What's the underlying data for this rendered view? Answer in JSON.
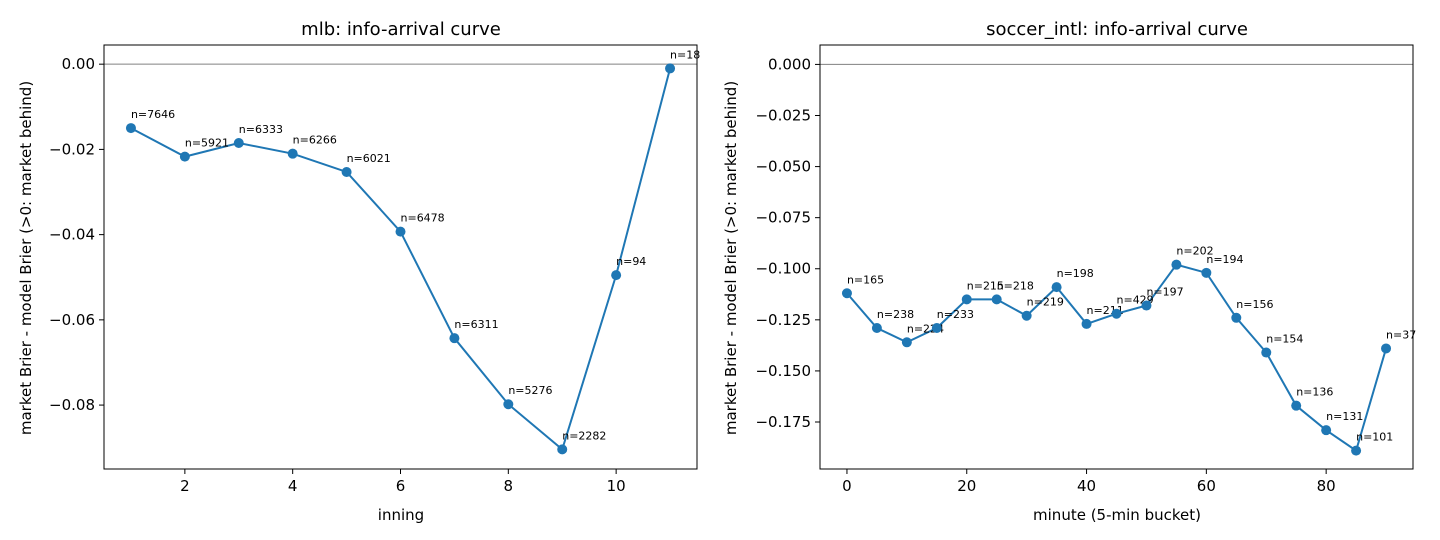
{
  "colors": {
    "series": "#1f77b4",
    "reference_line": "#808080"
  },
  "chart_data": [
    {
      "type": "line",
      "title": "mlb: info-arrival curve",
      "xlabel": "inning",
      "ylabel": "market Brier - model Brier (>0: market behind)",
      "xlim": [
        0.5,
        11.5
      ],
      "ylim": [
        -0.095,
        0.0045
      ],
      "xticks": [
        2,
        4,
        6,
        8,
        10
      ],
      "yticks": [
        0.0,
        -0.02,
        -0.04,
        -0.06,
        -0.08
      ],
      "ytick_labels": [
        "0.00",
        "−0.02",
        "−0.04",
        "−0.06",
        "−0.08"
      ],
      "reference_y": 0,
      "grid": false,
      "markers": true,
      "x": [
        1,
        2,
        3,
        4,
        5,
        6,
        7,
        8,
        9,
        10,
        11
      ],
      "y": [
        -0.015,
        -0.0217,
        -0.0185,
        -0.021,
        -0.0253,
        -0.0393,
        -0.0643,
        -0.0798,
        -0.0904,
        -0.0495,
        -0.001
      ],
      "annotations": [
        "n=7646",
        "n=5921",
        "n=6333",
        "n=6266",
        "n=6021",
        "n=6478",
        "n=6311",
        "n=5276",
        "n=2282",
        "n=94",
        "n=18"
      ]
    },
    {
      "type": "line",
      "title": "soccer_intl: info-arrival curve",
      "xlabel": "minute (5-min bucket)",
      "ylabel": "market Brier - model Brier (>0: market behind)",
      "xlim": [
        -4.5,
        94.5
      ],
      "ylim": [
        -0.198,
        0.0095
      ],
      "xticks": [
        0,
        20,
        40,
        60,
        80
      ],
      "yticks": [
        0.0,
        -0.025,
        -0.05,
        -0.075,
        -0.1,
        -0.125,
        -0.15,
        -0.175
      ],
      "ytick_labels": [
        "0.000",
        "−0.025",
        "−0.050",
        "−0.075",
        "−0.100",
        "−0.125",
        "−0.150",
        "−0.175"
      ],
      "reference_y": 0,
      "grid": false,
      "markers": true,
      "x": [
        0,
        5,
        10,
        15,
        20,
        25,
        30,
        35,
        40,
        45,
        50,
        55,
        60,
        65,
        70,
        75,
        80,
        85,
        90
      ],
      "y": [
        -0.112,
        -0.129,
        -0.136,
        -0.129,
        -0.115,
        -0.115,
        -0.123,
        -0.109,
        -0.127,
        -0.122,
        -0.118,
        -0.098,
        -0.102,
        -0.124,
        -0.141,
        -0.167,
        -0.179,
        -0.189,
        -0.139
      ],
      "annotations": [
        "n=165",
        "n=238",
        "n=224",
        "n=233",
        "n=215",
        "n=218",
        "n=219",
        "n=198",
        "n=211",
        "n=429",
        "n=197",
        "n=202",
        "n=194",
        "n=156",
        "n=154",
        "n=136",
        "n=131",
        "n=101",
        "n=37"
      ]
    }
  ]
}
